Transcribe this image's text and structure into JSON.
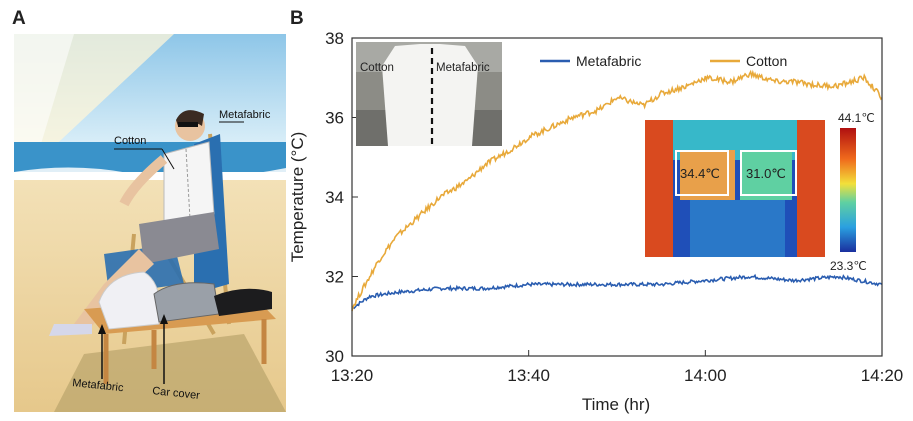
{
  "panel_a": {
    "letter": "A",
    "labels": {
      "cotton": "Cotton",
      "metafabric": "Metafabric",
      "bottom_metafabric": "Metafabric",
      "car_cover": "Car cover"
    }
  },
  "panel_b": {
    "letter": "B"
  },
  "photo_inset": {
    "cotton": "Cotton",
    "metafabric": "Metafabric"
  },
  "thermal_inset": {
    "left_box": "34.4℃",
    "right_box": "31.0℃",
    "scale_max": "44.1℃",
    "scale_min": "23.3℃"
  },
  "colors": {
    "metafabric": "#2a5db0",
    "cotton": "#e8a93a"
  },
  "chart_data": {
    "type": "line",
    "xlabel": "Time (hr)",
    "ylabel": "Temperature (°C)",
    "x_ticks": [
      "13:20",
      "13:40",
      "14:00",
      "14:20"
    ],
    "y_ticks": [
      "30",
      "32",
      "34",
      "36",
      "38"
    ],
    "x_range_min": [
      0,
      60
    ],
    "ylim": [
      30,
      38
    ],
    "legend_position": "top-right",
    "series": [
      {
        "name": "Metafabric",
        "x": [
          0,
          2,
          5,
          10,
          15,
          20,
          25,
          30,
          35,
          40,
          45,
          50,
          55,
          60
        ],
        "y": [
          31.2,
          31.5,
          31.6,
          31.7,
          31.7,
          31.8,
          31.8,
          31.8,
          31.8,
          31.9,
          32.0,
          31.9,
          32.0,
          31.8
        ]
      },
      {
        "name": "Cotton",
        "x": [
          0,
          1,
          2,
          3,
          5,
          8,
          10,
          13,
          15,
          18,
          20,
          23,
          25,
          28,
          30,
          33,
          35,
          38,
          40,
          43,
          45,
          48,
          50,
          53,
          55,
          58,
          60
        ],
        "y": [
          31.2,
          31.6,
          32.0,
          32.4,
          33.0,
          33.6,
          34.0,
          34.4,
          34.8,
          35.2,
          35.5,
          35.8,
          36.0,
          36.2,
          36.5,
          36.3,
          36.6,
          36.8,
          37.0,
          36.9,
          37.1,
          36.9,
          36.9,
          36.8,
          36.8,
          37.0,
          36.5
        ]
      }
    ]
  }
}
